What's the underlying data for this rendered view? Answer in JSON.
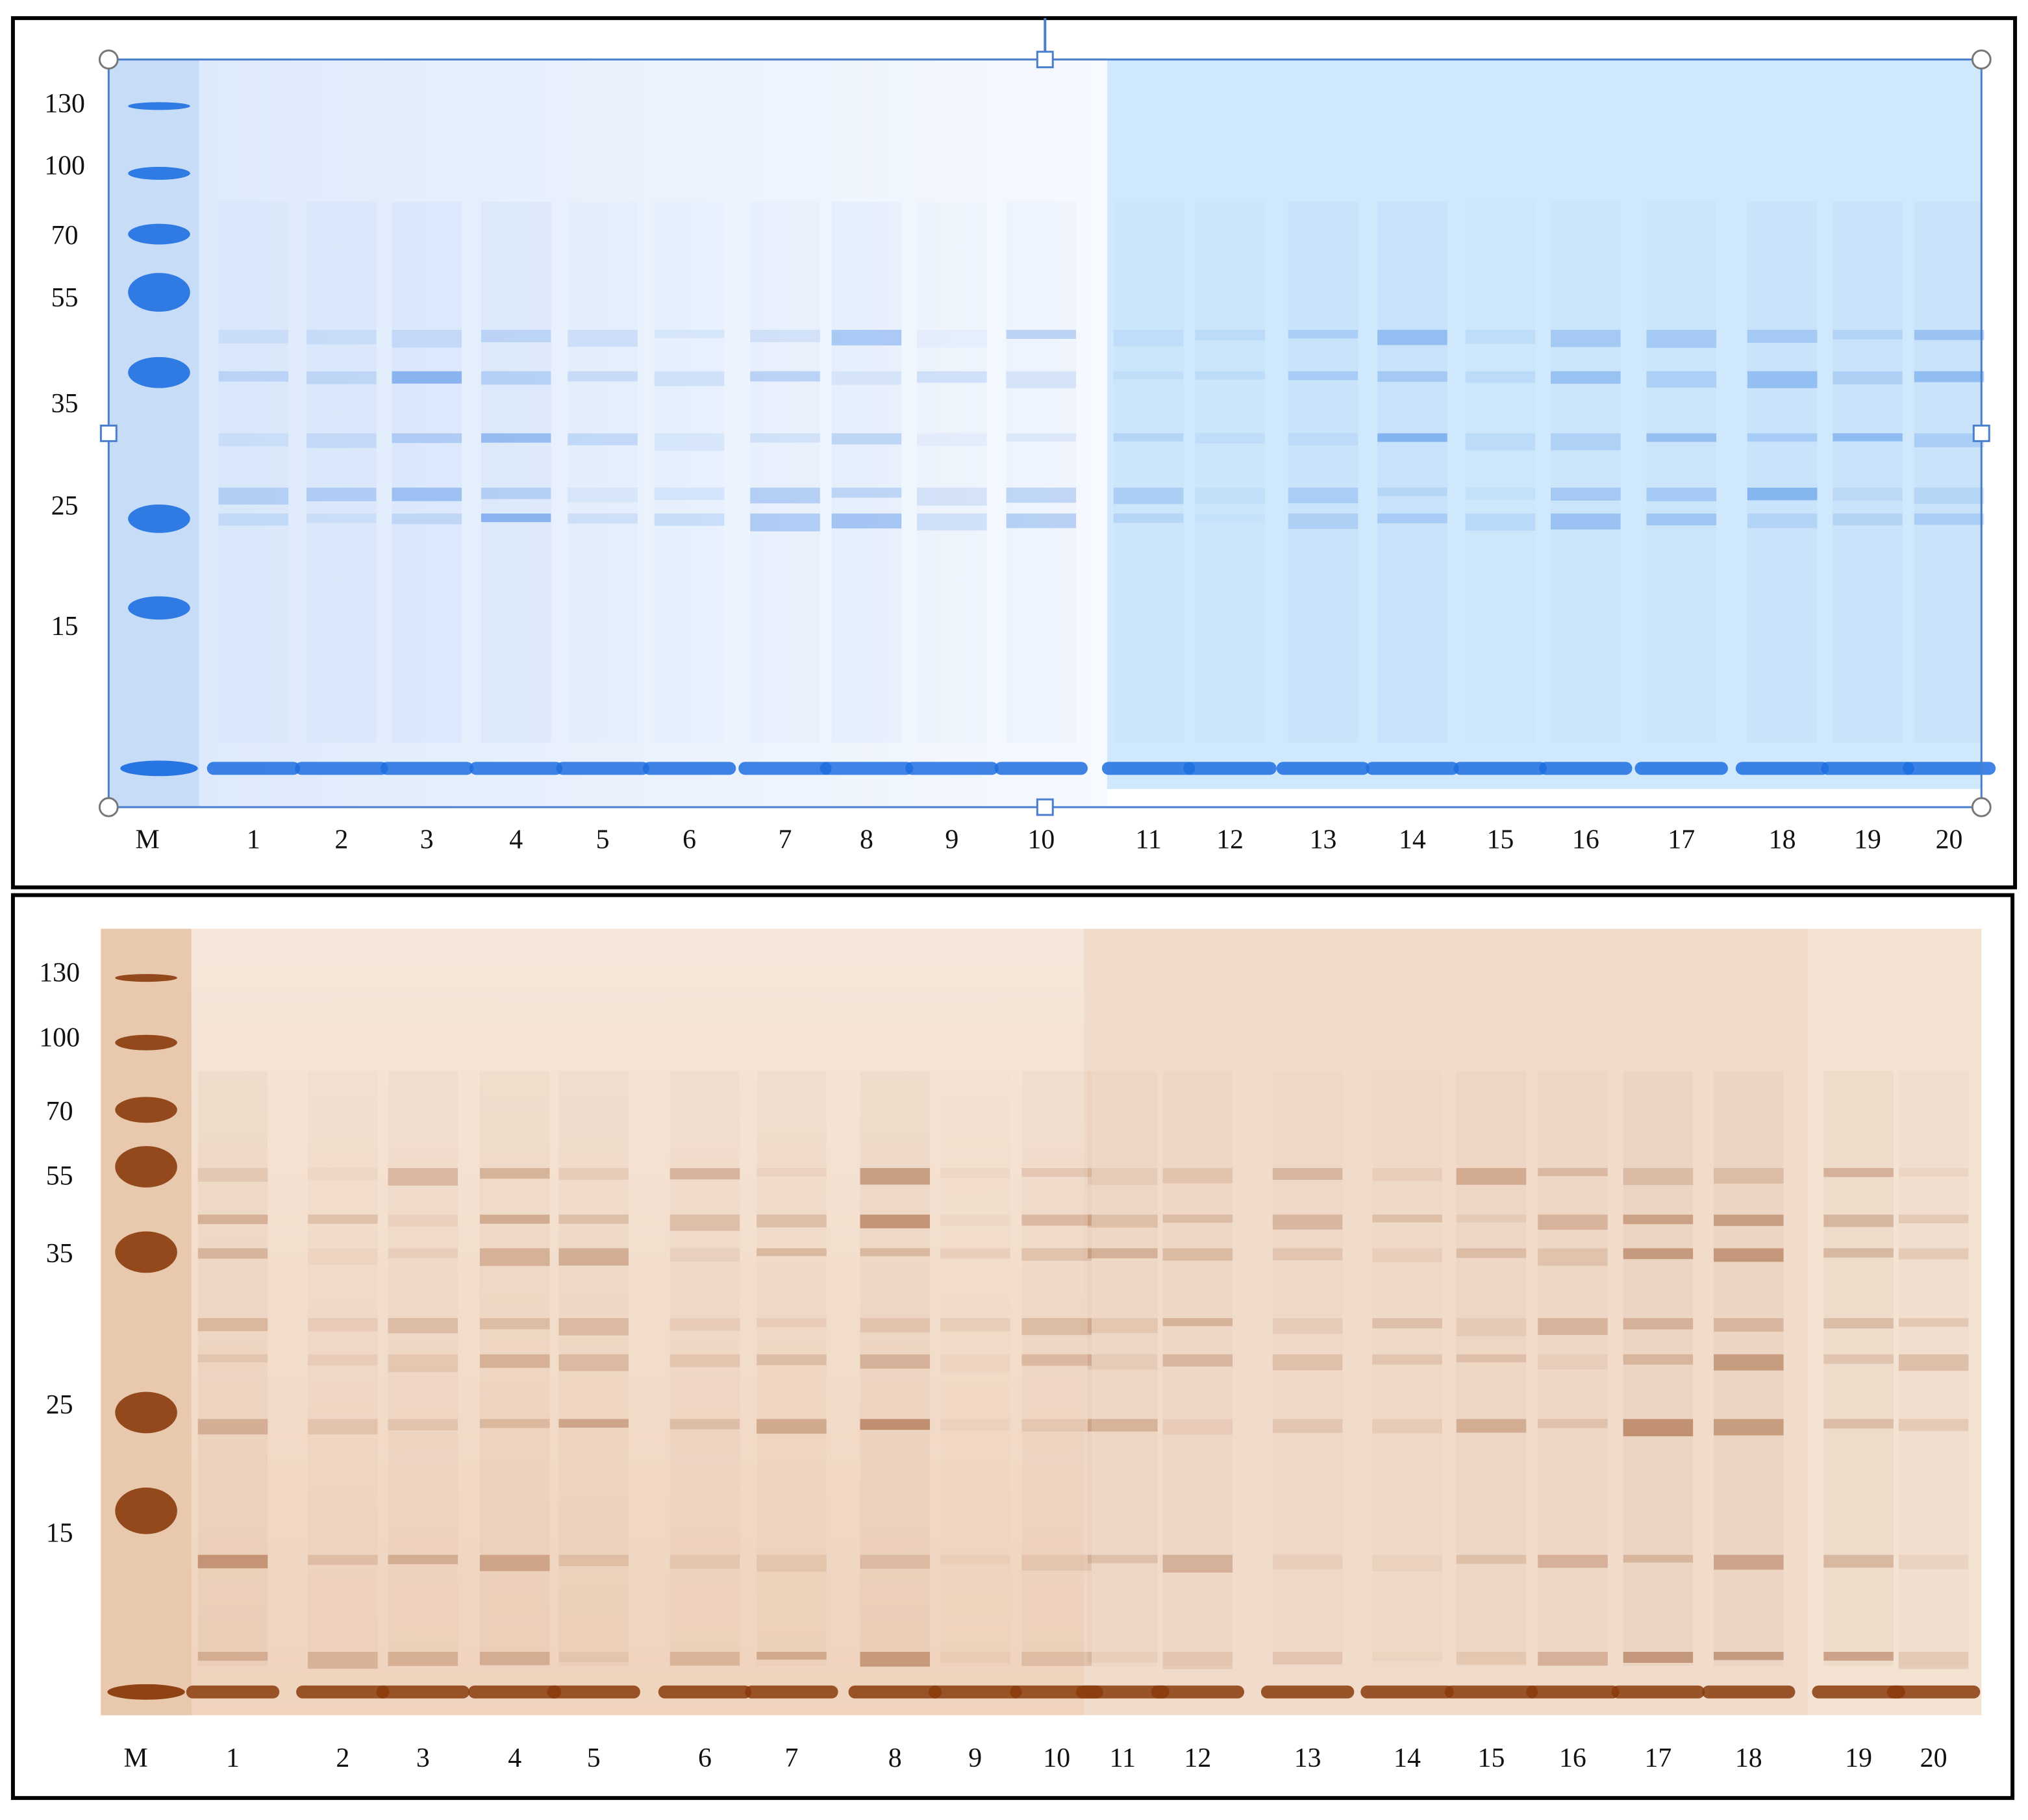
{
  "panels": [
    {
      "marker_labels": [
        "130",
        "100",
        "70",
        "55",
        "35",
        "25",
        "15"
      ],
      "lane_labels": [
        "M",
        "1",
        "2",
        "3",
        "4",
        "5",
        "6",
        "7",
        "8",
        "9",
        "10",
        "11",
        "12",
        "13",
        "14",
        "15",
        "16",
        "17",
        "18",
        "19",
        "20"
      ]
    },
    {
      "marker_labels": [
        "130",
        "100",
        "70",
        "55",
        "35",
        "25",
        "15"
      ],
      "lane_labels": [
        "M",
        "1",
        "2",
        "3",
        "4",
        "5",
        "6",
        "7",
        "8",
        "9",
        "10",
        "11",
        "12",
        "13",
        "14",
        "15",
        "16",
        "17",
        "18",
        "19",
        "20"
      ]
    }
  ]
}
